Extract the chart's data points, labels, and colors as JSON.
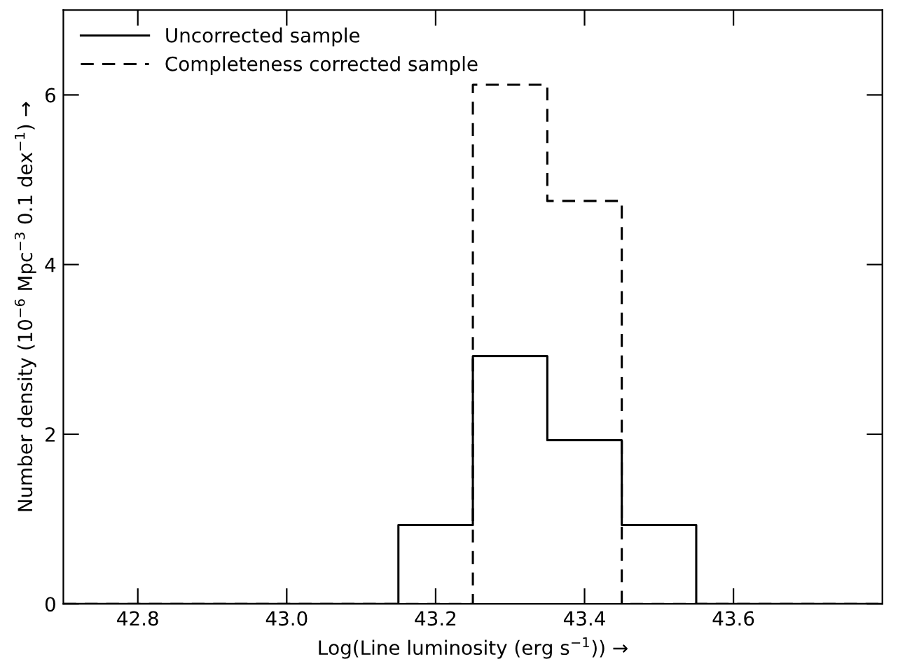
{
  "chart_data": {
    "type": "step",
    "xlabel": "Log(Line luminosity (erg s$^{−1}$)) →",
    "ylabel": "Number density (10$^{−6}$ Mpc$^{−3}$ 0.1 dex$^{−1}$) →",
    "series": [
      {
        "name": "Uncorrected sample",
        "color": "#000000",
        "line_style": "solid",
        "x": [
          42.7,
          43.15,
          43.25,
          43.35,
          43.45,
          43.55,
          43.8
        ],
        "values": [
          0,
          0.93,
          2.92,
          1.93,
          0.93,
          0,
          0
        ]
      },
      {
        "name": "Completeness corrected sample",
        "color": "#000000",
        "line_style": "dashed",
        "x": [
          42.7,
          43.25,
          43.35,
          43.45,
          43.8
        ],
        "values": [
          0,
          6.12,
          4.75,
          0,
          0
        ]
      }
    ],
    "xlim": [
      42.7,
      43.8
    ],
    "xticks": [
      42.8,
      {
        "value": 43.0,
        "label": "43.0"
      },
      43.2,
      43.4,
      43.6
    ],
    "ylim": [
      0,
      7
    ],
    "yticks": [
      0,
      2,
      4,
      6
    ],
    "grid": false,
    "legend": "top left"
  }
}
